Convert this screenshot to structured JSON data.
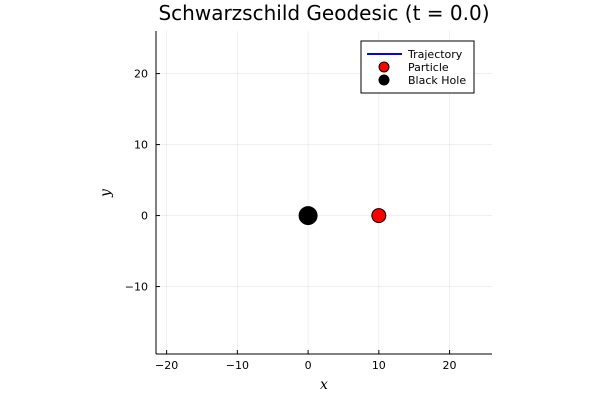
{
  "chart_data": {
    "type": "scatter",
    "title": "Schwarzschild Geodesic (t = 0.0)",
    "xlabel": "x",
    "ylabel": "y",
    "xlim": [
      -21.5,
      26.0
    ],
    "ylim": [
      -19.5,
      26.0
    ],
    "xticks": [
      -20,
      -10,
      0,
      10,
      20
    ],
    "yticks": [
      -10,
      0,
      10,
      20
    ],
    "xtick_labels": [
      "−20",
      "−10",
      "0",
      "10",
      "20"
    ],
    "ytick_labels": [
      "−10",
      "0",
      "10",
      "20"
    ],
    "grid": true,
    "legend_position": "top-right",
    "series": [
      {
        "name": "Trajectory",
        "kind": "line",
        "color": "#0000ff",
        "points": []
      },
      {
        "name": "Particle",
        "kind": "marker",
        "color": "#ff0000",
        "points": [
          [
            10,
            0
          ]
        ]
      },
      {
        "name": "Black Hole",
        "kind": "marker",
        "color": "#000000",
        "points": [
          [
            0,
            0
          ]
        ]
      }
    ]
  }
}
